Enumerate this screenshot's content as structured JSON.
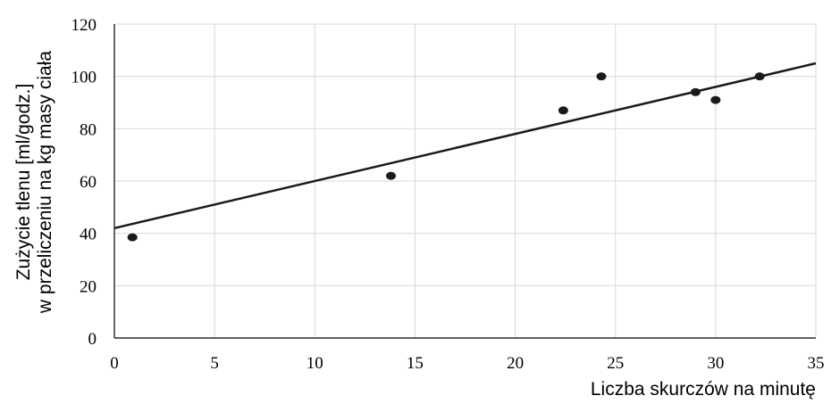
{
  "chart_data": {
    "type": "scatter",
    "xlabel": "Liczba skurczów na minutę",
    "ylabel_lines": [
      "Zużycie tlenu [ml/godz.]",
      "w przeliczeniu na kg masy ciała"
    ],
    "xlim": [
      0,
      35
    ],
    "ylim": [
      0,
      120
    ],
    "xticks": [
      "0",
      "5",
      "10",
      "15",
      "20",
      "25",
      "30",
      "35"
    ],
    "yticks": [
      "0",
      "20",
      "40",
      "60",
      "80",
      "100",
      "120"
    ],
    "grid": "vertical-and-horizontal",
    "points": [
      {
        "x": 0.9,
        "y": 38.5
      },
      {
        "x": 13.8,
        "y": 62
      },
      {
        "x": 22.4,
        "y": 87
      },
      {
        "x": 24.3,
        "y": 100
      },
      {
        "x": 29.0,
        "y": 94
      },
      {
        "x": 30.0,
        "y": 91
      },
      {
        "x": 32.2,
        "y": 100
      }
    ],
    "trendline": {
      "type": "linear",
      "x": [
        0,
        35
      ],
      "y": [
        42,
        105
      ]
    },
    "colors": {
      "points": "#1a1a1a",
      "trendline": "#1a1a1a",
      "grid": "#d9d9d9"
    }
  }
}
